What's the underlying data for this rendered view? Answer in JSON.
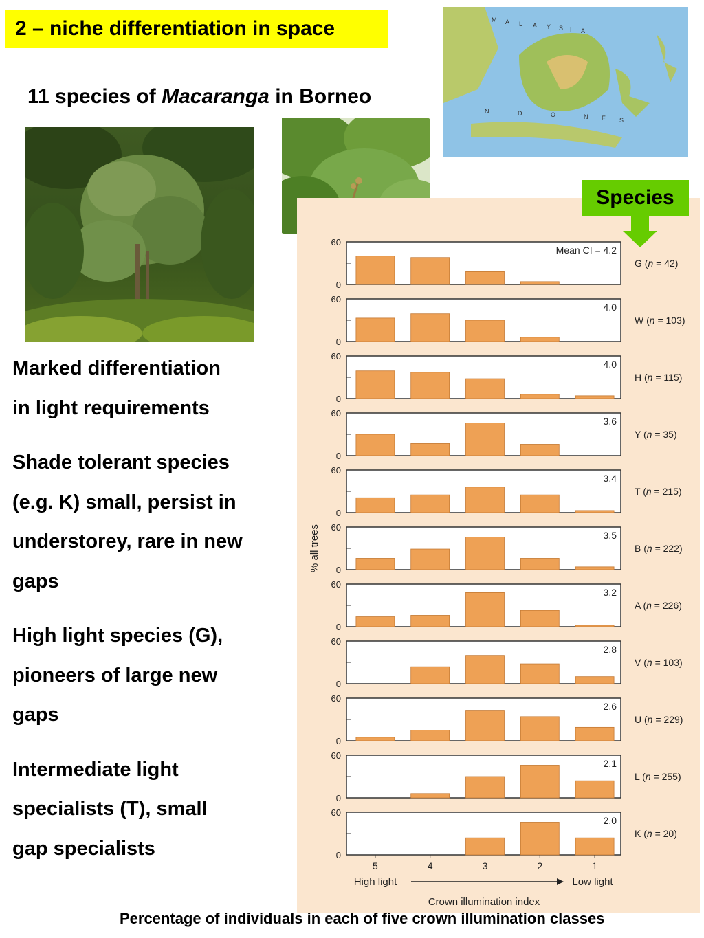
{
  "header": {
    "title": "2 – niche differentiation in space",
    "subtitle_pre": "11 species of ",
    "subtitle_italic": "Macaranga",
    "subtitle_post": " in Borneo"
  },
  "images": {
    "tree_photo": "Macaranga tree",
    "leaf_photo": "Macaranga leaves",
    "map": "Map of Borneo and Indonesia"
  },
  "map_labels": [
    "M",
    "A",
    "L",
    "A",
    "Y",
    "S",
    "I",
    "A",
    "N",
    "D",
    "O",
    "N",
    "E",
    "S"
  ],
  "body": {
    "p1": [
      "Marked differentiation",
      "in light requirements"
    ],
    "p2": [
      "Shade tolerant species",
      "(e.g. K) small, persist in",
      "understorey, rare in new",
      "gaps"
    ],
    "p3": [
      "High light species (G),",
      "pioneers of large new",
      "gaps"
    ],
    "p4": [
      "Intermediate light",
      "specialists (T), small",
      "gap specialists"
    ]
  },
  "species_label": "Species",
  "caption": "Percentage of individuals in each of five crown illumination classes",
  "colors": {
    "bar": "#eea155",
    "bar_stroke": "#c47a35",
    "panel_bg": "#fbe6cf",
    "title_bg": "#ffff00",
    "species_bg": "#66cc00"
  },
  "chart_data": {
    "type": "bar",
    "ylabel": "% all trees",
    "xlabel": "Crown illumination index",
    "ylim": [
      0,
      60
    ],
    "y_ticks": [
      "60",
      "0"
    ],
    "categories": [
      "5",
      "4",
      "3",
      "2",
      "1"
    ],
    "x_left_label": "High light",
    "x_right_label": "Low light",
    "mean_prefix": "Mean CI = ",
    "series": [
      {
        "name": "G",
        "n": "42",
        "ci": "4.2",
        "values": [
          40,
          38,
          18,
          4,
          0
        ]
      },
      {
        "name": "W",
        "n": "103",
        "ci": "4.0",
        "values": [
          33,
          39,
          30,
          6,
          0
        ]
      },
      {
        "name": "H",
        "n": "115",
        "ci": "4.0",
        "values": [
          39,
          37,
          28,
          6,
          4
        ]
      },
      {
        "name": "Y",
        "n": "35",
        "ci": "3.6",
        "values": [
          30,
          17,
          46,
          16,
          0
        ]
      },
      {
        "name": "T",
        "n": "215",
        "ci": "3.4",
        "values": [
          21,
          25,
          36,
          25,
          3
        ]
      },
      {
        "name": "B",
        "n": "222",
        "ci": "3.5",
        "values": [
          16,
          29,
          46,
          16,
          4
        ]
      },
      {
        "name": "A",
        "n": "226",
        "ci": "3.2",
        "values": [
          14,
          16,
          48,
          23,
          2
        ]
      },
      {
        "name": "V",
        "n": "103",
        "ci": "2.8",
        "values": [
          0,
          24,
          40,
          28,
          10
        ]
      },
      {
        "name": "U",
        "n": "229",
        "ci": "2.6",
        "values": [
          5,
          15,
          43,
          34,
          19
        ]
      },
      {
        "name": "L",
        "n": "255",
        "ci": "2.1",
        "values": [
          0,
          6,
          30,
          46,
          24
        ]
      },
      {
        "name": "K",
        "n": "20",
        "ci": "2.0",
        "values": [
          0,
          0,
          24,
          46,
          24
        ]
      }
    ]
  }
}
